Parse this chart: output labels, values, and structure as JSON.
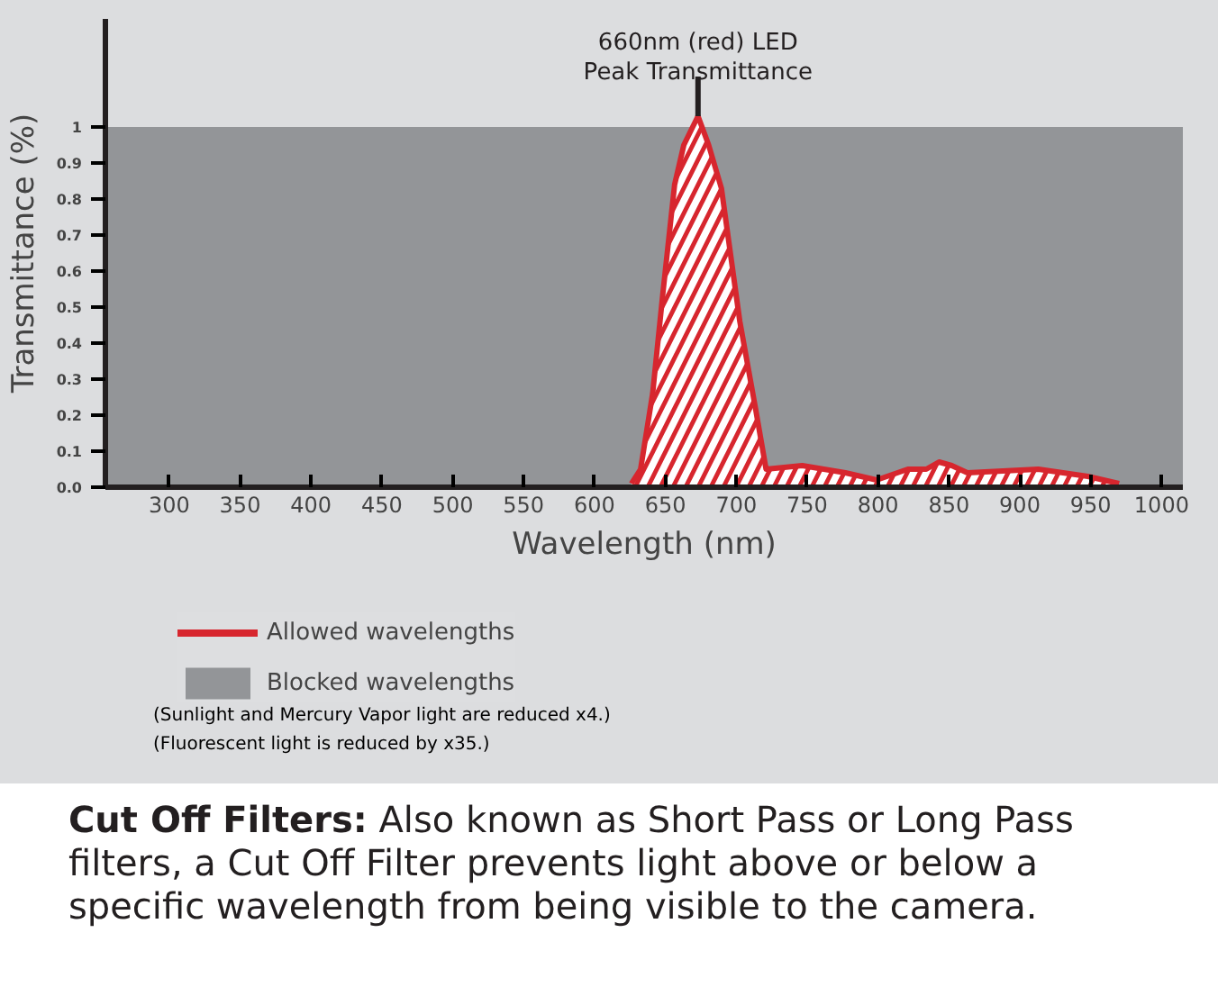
{
  "chart_data": {
    "type": "area",
    "xlabel": "Wavelength (nm)",
    "ylabel": "Transmittance (%)",
    "series": [
      {
        "name": "Allowed wavelengths",
        "color": "#d7262e",
        "x": [
          626,
          632.5,
          641,
          648,
          656.5,
          663,
          673,
          680.5,
          689.5,
          702.5,
          713.5,
          721,
          746.5,
          777,
          799,
          821,
          834,
          843,
          852,
          863,
          913,
          948,
          970
        ],
        "values": [
          0.01,
          0.05,
          0.26,
          0.53,
          0.84,
          0.95,
          1.03,
          0.95,
          0.83,
          0.46,
          0.22,
          0.05,
          0.06,
          0.04,
          0.02,
          0.05,
          0.05,
          0.07,
          0.06,
          0.04,
          0.05,
          0.03,
          0.01
        ]
      }
    ],
    "bands": [
      {
        "axis": "y",
        "from": 0,
        "to": 1,
        "label": "Blocked wavelengths",
        "color": "#939598"
      }
    ],
    "xlim": [
      255,
      1015
    ],
    "ylim": [
      0,
      1.3
    ],
    "xticks": [
      300,
      350,
      400,
      450,
      500,
      550,
      600,
      650,
      700,
      750,
      800,
      850,
      900,
      950,
      1000
    ],
    "yticks": [
      {
        "value": 0,
        "label": "0.0"
      },
      0.1,
      0.2,
      0.3,
      0.4,
      0.5,
      0.6,
      0.7,
      0.8,
      0.9,
      1
    ],
    "grid": false,
    "legend": "bottom",
    "marker": "none",
    "line_style": "solid",
    "annotations": [
      {
        "text": "660nm (red) LED\nPeak Transmittance",
        "x": 673,
        "y": 1.03
      },
      "(Sunlight and Mercury Vapor light are reduced x4.)",
      "(Fluorescent light is reduced by x35.)",
      "Cut Off Filters:",
      "Also known as Short Pass or Long Pass filters, a Cut Off Filter prevents light above or below a specific wavelength from being visible to the camera."
    ]
  }
}
